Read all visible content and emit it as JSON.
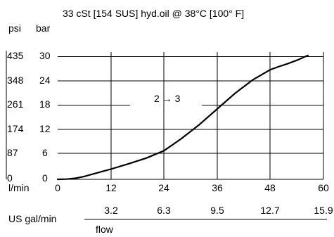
{
  "chart_data": {
    "type": "line",
    "title": "33 cSt [154 SUS] hyd.oil @ 38°C [100° F]",
    "y_unit_left": "psi",
    "y_unit_right": "bar",
    "x_unit": "l/min",
    "x2_unit": "US gal/min",
    "x_caption": "flow",
    "xlim": [
      0,
      60
    ],
    "ylim": [
      0,
      30
    ],
    "x_ticks": [
      "0",
      "12",
      "24",
      "36",
      "48",
      "60"
    ],
    "x2_ticks": [
      "3.2",
      "6.3",
      "9.5",
      "12.7",
      "15.9"
    ],
    "y_bar_ticks": [
      "0",
      "6",
      "12",
      "18",
      "24",
      "30"
    ],
    "y_psi_ticks": [
      "0",
      "87",
      "174",
      "261",
      "348",
      "435"
    ],
    "grid": true,
    "annotation": "2 → 3",
    "series": [
      {
        "x": [
          0,
          2,
          4,
          6,
          8,
          10,
          12,
          16,
          20,
          24,
          28,
          32,
          36,
          40,
          44,
          48,
          50,
          52,
          54,
          56.5
        ],
        "y": [
          0,
          0.05,
          0.25,
          0.7,
          1.3,
          1.9,
          2.5,
          3.8,
          5.2,
          7.0,
          10.0,
          13.4,
          17.2,
          21.0,
          24.3,
          26.8,
          27.6,
          28.3,
          29.1,
          30.3
        ]
      }
    ]
  }
}
